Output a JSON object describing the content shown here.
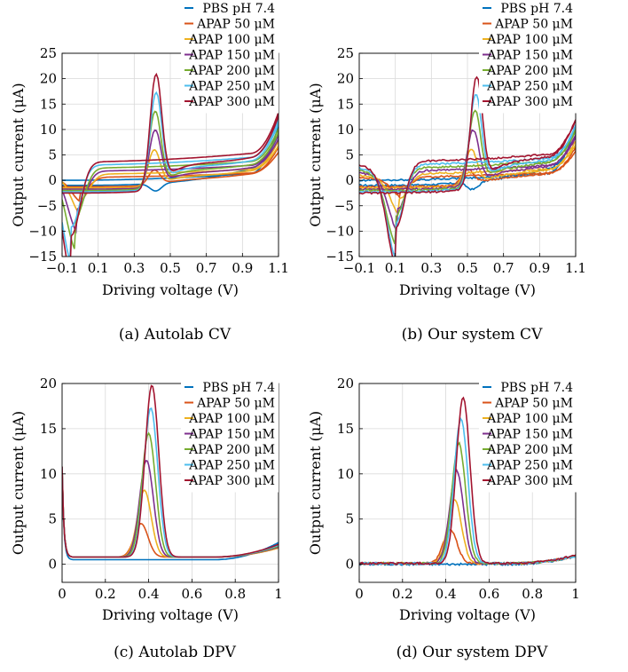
{
  "colors": [
    "#0072BD",
    "#D95319",
    "#EDB120",
    "#7E2F8E",
    "#77AC30",
    "#4DBEEE",
    "#A2142F"
  ],
  "series_names": [
    "PBS pH 7.4",
    "APAP 50 μM",
    "APAP 100 μM",
    "APAP 150 μM",
    "APAP 200 μM",
    "APAP 250 μM",
    "APAP 300 μM"
  ],
  "chart_data": [
    {
      "id": "a",
      "type": "line",
      "caption": "(a) Autolab CV",
      "xlabel": "Driving voltage (V)",
      "ylabel": "Output current (μA)",
      "xlim": [
        -0.1,
        1.1
      ],
      "ylim": [
        -15,
        25
      ],
      "xticks": [
        -0.1,
        0.1,
        0.3,
        0.5,
        0.7,
        0.9,
        1.1
      ],
      "xtick_labels": [
        "−0.1",
        "0.1",
        "0.3",
        "0.5",
        "0.7",
        "0.9",
        "1.1"
      ],
      "yticks": [
        -15,
        -10,
        -5,
        0,
        5,
        10,
        15,
        20,
        25
      ],
      "ytick_labels": [
        "−15",
        "−10",
        "−5",
        "0",
        "5",
        "10",
        "15",
        "20",
        "25"
      ],
      "grid": true,
      "legend": "top-right",
      "curve": "cv",
      "peak_x": [
        0.42,
        0.41,
        0.41,
        0.415,
        0.415,
        0.42,
        0.42
      ],
      "peak_y": [
        0.0,
        4.5,
        8.7,
        12.8,
        16.7,
        20.5,
        24.3
      ],
      "cathodic_x": [
        -0.05,
        0.0,
        0.0,
        -0.02,
        -0.03,
        -0.05,
        -0.05
      ],
      "cathodic_y": [
        0.0,
        -3.0,
        -5.0,
        -7.5,
        -10.0,
        -12.2,
        -14.5
      ],
      "end_y": [
        9.0,
        5.5,
        6.5,
        7.5,
        8.5,
        10.0,
        11.2
      ],
      "series": [
        {
          "name": "PBS pH 7.4",
          "anodic_peak": [
            0.42,
            0.0
          ],
          "cathodic_peak": [
            -0.05,
            0.0
          ]
        },
        {
          "name": "APAP 50 μM",
          "anodic_peak": [
            0.41,
            4.5
          ],
          "cathodic_peak": [
            0.0,
            -3.0
          ]
        },
        {
          "name": "APAP 100 μM",
          "anodic_peak": [
            0.41,
            8.7
          ],
          "cathodic_peak": [
            0.0,
            -5.0
          ]
        },
        {
          "name": "APAP 150 μM",
          "anodic_peak": [
            0.415,
            12.8
          ],
          "cathodic_peak": [
            -0.02,
            -7.5
          ]
        },
        {
          "name": "APAP 200 μM",
          "anodic_peak": [
            0.415,
            16.7
          ],
          "cathodic_peak": [
            -0.03,
            -10.0
          ]
        },
        {
          "name": "APAP 250 μM",
          "anodic_peak": [
            0.42,
            20.5
          ],
          "cathodic_peak": [
            -0.05,
            -12.2
          ]
        },
        {
          "name": "APAP 300 μM",
          "anodic_peak": [
            0.42,
            24.3
          ],
          "cathodic_peak": [
            -0.05,
            -14.5
          ]
        }
      ]
    },
    {
      "id": "b",
      "type": "line",
      "caption": "(b) Our system CV",
      "xlabel": "Driving voltage (V)",
      "ylabel": "Output current (μA)",
      "xlim": [
        -0.1,
        1.1
      ],
      "ylim": [
        -15,
        25
      ],
      "xticks": [
        -0.1,
        0.1,
        0.3,
        0.5,
        0.7,
        0.9,
        1.1
      ],
      "xtick_labels": [
        "−0.1",
        "0.1",
        "0.3",
        "0.5",
        "0.7",
        "0.9",
        "1.1"
      ],
      "yticks": [
        -15,
        -10,
        -5,
        0,
        5,
        10,
        15,
        20,
        25
      ],
      "ytick_labels": [
        "−15",
        "−10",
        "−5",
        "0",
        "5",
        "10",
        "15",
        "20",
        "25"
      ],
      "grid": true,
      "legend": "top-right",
      "curve": "cv",
      "peak_x": [
        0.53,
        0.5,
        0.52,
        0.53,
        0.54,
        0.545,
        0.55
      ],
      "peak_y": [
        0.0,
        4.5,
        8.5,
        12.5,
        16.5,
        20.0,
        23.5
      ],
      "cathodic_x": [
        0.1,
        0.13,
        0.12,
        0.11,
        0.1,
        0.1,
        0.1
      ],
      "cathodic_y": [
        0.0,
        -2.5,
        -5.0,
        -7.5,
        -9.5,
        -11.5,
        -13.0
      ],
      "end_y": [
        9.0,
        5.5,
        6.5,
        7.5,
        8.5,
        9.0,
        10.0
      ],
      "series": [
        {
          "name": "PBS pH 7.4",
          "anodic_peak": [
            0.53,
            0.0
          ],
          "cathodic_peak": [
            0.1,
            0.0
          ]
        },
        {
          "name": "APAP 50 μM",
          "anodic_peak": [
            0.5,
            4.5
          ],
          "cathodic_peak": [
            0.13,
            -2.5
          ]
        },
        {
          "name": "APAP 100 μM",
          "anodic_peak": [
            0.52,
            8.5
          ],
          "cathodic_peak": [
            0.12,
            -5.0
          ]
        },
        {
          "name": "APAP 150 μM",
          "anodic_peak": [
            0.53,
            12.5
          ],
          "cathodic_peak": [
            0.11,
            -7.5
          ]
        },
        {
          "name": "APAP 200 μM",
          "anodic_peak": [
            0.54,
            16.5
          ],
          "cathodic_peak": [
            0.1,
            -9.5
          ]
        },
        {
          "name": "APAP 250 μM",
          "anodic_peak": [
            0.545,
            20.0
          ],
          "cathodic_peak": [
            0.1,
            -11.5
          ]
        },
        {
          "name": "APAP 300 μM",
          "anodic_peak": [
            0.55,
            23.5
          ],
          "cathodic_peak": [
            0.1,
            -13.0
          ]
        }
      ]
    },
    {
      "id": "c",
      "type": "line",
      "caption": "(c) Autolab DPV",
      "xlabel": "Driving voltage (V)",
      "ylabel": "Output current (μA)",
      "xlim": [
        0,
        1
      ],
      "ylim": [
        -2,
        20
      ],
      "xticks": [
        0,
        0.2,
        0.4,
        0.6,
        0.8,
        1
      ],
      "xtick_labels": [
        "0",
        "0.2",
        "0.4",
        "0.6",
        "0.8",
        "1"
      ],
      "yticks": [
        0,
        5,
        10,
        15,
        20
      ],
      "ytick_labels": [
        "0",
        "5",
        "10",
        "15",
        "20"
      ],
      "grid": true,
      "legend": "right",
      "curve": "dpv",
      "peak_x": [
        0.4,
        0.365,
        0.38,
        0.39,
        0.4,
        0.41,
        0.415
      ],
      "peak_y": [
        0.5,
        4.5,
        8.2,
        11.5,
        14.5,
        17.3,
        19.8
      ],
      "baseline_y": [
        0.5,
        0.8,
        0.8,
        0.8,
        0.8,
        0.8,
        0.8
      ],
      "end_y": [
        2.4,
        1.8,
        1.8,
        1.9,
        2.0,
        2.1,
        2.2
      ],
      "series": [
        {
          "name": "PBS pH 7.4",
          "peak": [
            0.4,
            0.5
          ]
        },
        {
          "name": "APAP 50 μM",
          "peak": [
            0.365,
            4.5
          ]
        },
        {
          "name": "APAP 100 μM",
          "peak": [
            0.38,
            8.2
          ]
        },
        {
          "name": "APAP 150 μM",
          "peak": [
            0.39,
            11.5
          ]
        },
        {
          "name": "APAP 200 μM",
          "peak": [
            0.4,
            14.5
          ]
        },
        {
          "name": "APAP 250 μM",
          "peak": [
            0.41,
            17.3
          ]
        },
        {
          "name": "APAP 300 μM",
          "peak": [
            0.415,
            19.8
          ]
        }
      ]
    },
    {
      "id": "d",
      "type": "line",
      "caption": "(d) Our system DPV",
      "xlabel": "Driving voltage (V)",
      "ylabel": "Output current (μA)",
      "xlim": [
        0,
        1
      ],
      "ylim": [
        -2,
        20
      ],
      "xticks": [
        0,
        0.2,
        0.4,
        0.6,
        0.8,
        1
      ],
      "xtick_labels": [
        "0",
        "0.2",
        "0.4",
        "0.6",
        "0.8",
        "1"
      ],
      "yticks": [
        0,
        5,
        10,
        15,
        20
      ],
      "ytick_labels": [
        "0",
        "5",
        "10",
        "15",
        "20"
      ],
      "grid": true,
      "legend": "top-right",
      "curve": "dpv",
      "peak_x": [
        0.45,
        0.42,
        0.44,
        0.45,
        0.46,
        0.47,
        0.48
      ],
      "peak_y": [
        0.0,
        3.8,
        7.2,
        10.3,
        13.4,
        16.1,
        18.4
      ],
      "baseline_y": [
        0.0,
        0.1,
        0.1,
        0.1,
        0.1,
        0.1,
        0.1
      ],
      "end_y": [
        0.9,
        0.9,
        0.9,
        0.9,
        0.9,
        0.9,
        1.0
      ],
      "series": [
        {
          "name": "PBS pH 7.4",
          "peak": [
            0.45,
            0.0
          ]
        },
        {
          "name": "APAP 50 μM",
          "peak": [
            0.42,
            3.8
          ]
        },
        {
          "name": "APAP 100 μM",
          "peak": [
            0.44,
            7.2
          ]
        },
        {
          "name": "APAP 150 μM",
          "peak": [
            0.45,
            10.3
          ]
        },
        {
          "name": "APAP 200 μM",
          "peak": [
            0.46,
            13.4
          ]
        },
        {
          "name": "APAP 250 μM",
          "peak": [
            0.47,
            16.1
          ]
        },
        {
          "name": "APAP 300 μM",
          "peak": [
            0.48,
            18.4
          ]
        }
      ]
    }
  ]
}
